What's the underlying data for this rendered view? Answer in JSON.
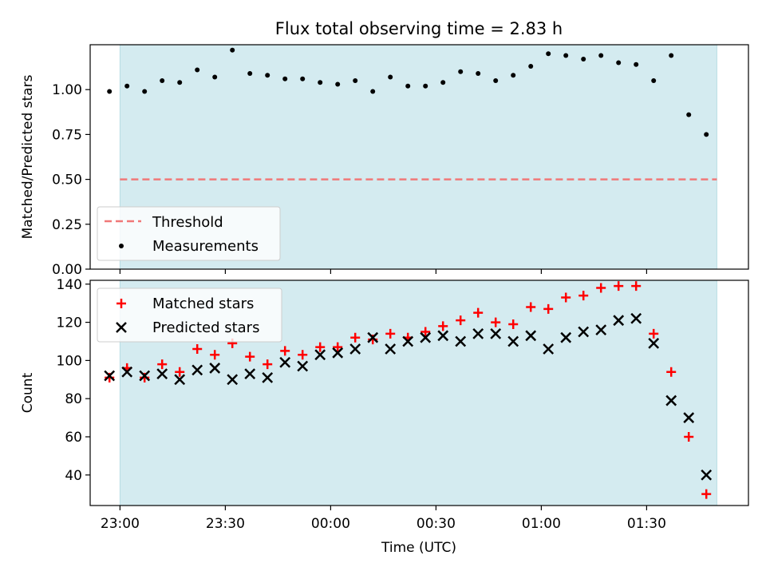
{
  "chart_data": {
    "title": "Flux total observing time = 2.83 h",
    "x_axis": {
      "label": "Time (UTC)",
      "ticks": [
        "23:00",
        "23:30",
        "00:00",
        "00:30",
        "01:00",
        "01:30"
      ],
      "tick_minutes_from_22h": [
        60,
        90,
        120,
        150,
        180,
        210
      ],
      "range_minutes_from_22h": [
        51.5,
        239.0
      ]
    },
    "observing_window_minutes_from_22h": [
      60,
      230
    ],
    "shade_color": "#d4ebf0",
    "panels": [
      {
        "type": "scatter",
        "ylabel": "Matched/Predicted stars",
        "ylim": [
          0,
          1.25
        ],
        "yticks": [
          0.0,
          0.25,
          0.5,
          0.75,
          1.0
        ],
        "ytick_labels": [
          "0.00",
          "0.25",
          "0.50",
          "0.75",
          "1.00"
        ],
        "legend_position": "lower-left",
        "series": [
          {
            "name": "Threshold",
            "kind": "hline",
            "y": 0.5,
            "color": "#f07878",
            "style": "dashed"
          },
          {
            "name": "Measurements",
            "kind": "dot",
            "color": "#000000",
            "x": [
              "22:57",
              "23:02",
              "23:07",
              "23:12",
              "23:17",
              "23:22",
              "23:27",
              "23:32",
              "23:37",
              "23:42",
              "23:47",
              "23:52",
              "23:57",
              "00:02",
              "00:07",
              "00:12",
              "00:17",
              "00:22",
              "00:27",
              "00:32",
              "00:37",
              "00:42",
              "00:47",
              "00:52",
              "00:57",
              "01:02",
              "01:07",
              "01:12",
              "01:17",
              "01:22",
              "01:27",
              "01:32",
              "01:37",
              "01:42",
              "01:47"
            ],
            "y": [
              0.99,
              1.02,
              0.99,
              1.05,
              1.04,
              1.11,
              1.07,
              1.22,
              1.09,
              1.08,
              1.06,
              1.06,
              1.04,
              1.03,
              1.05,
              0.99,
              1.07,
              1.02,
              1.02,
              1.04,
              1.1,
              1.09,
              1.05,
              1.08,
              1.13,
              1.2,
              1.19,
              1.17,
              1.19,
              1.15,
              1.14,
              1.05,
              1.19,
              0.86,
              0.75
            ]
          }
        ]
      },
      {
        "type": "scatter",
        "ylabel": "Count",
        "ylim": [
          24,
          142
        ],
        "yticks": [
          40,
          60,
          80,
          100,
          120,
          140
        ],
        "ytick_labels": [
          "40",
          "60",
          "80",
          "100",
          "120",
          "140"
        ],
        "legend_position": "upper-left",
        "series": [
          {
            "name": "Matched stars",
            "kind": "plus",
            "color": "#ff0000",
            "x": [
              "22:57",
              "23:02",
              "23:07",
              "23:12",
              "23:17",
              "23:22",
              "23:27",
              "23:32",
              "23:37",
              "23:42",
              "23:47",
              "23:52",
              "23:57",
              "00:02",
              "00:07",
              "00:12",
              "00:17",
              "00:22",
              "00:27",
              "00:32",
              "00:37",
              "00:42",
              "00:47",
              "00:52",
              "00:57",
              "01:02",
              "01:07",
              "01:12",
              "01:17",
              "01:22",
              "01:27",
              "01:32",
              "01:37",
              "01:42",
              "01:47"
            ],
            "y": [
              91,
              96,
              91,
              98,
              94,
              106,
              103,
              109,
              102,
              98,
              105,
              103,
              107,
              107,
              112,
              111,
              114,
              112,
              115,
              118,
              121,
              125,
              120,
              119,
              128,
              127,
              133,
              134,
              138,
              139,
              139,
              114,
              94,
              60,
              30
            ]
          },
          {
            "name": "Predicted stars",
            "kind": "cross",
            "color": "#000000",
            "x": [
              "22:57",
              "23:02",
              "23:07",
              "23:12",
              "23:17",
              "23:22",
              "23:27",
              "23:32",
              "23:37",
              "23:42",
              "23:47",
              "23:52",
              "23:57",
              "00:02",
              "00:07",
              "00:12",
              "00:17",
              "00:22",
              "00:27",
              "00:32",
              "00:37",
              "00:42",
              "00:47",
              "00:52",
              "00:57",
              "01:02",
              "01:07",
              "01:12",
              "01:17",
              "01:22",
              "01:27",
              "01:32",
              "01:37",
              "01:42",
              "01:47"
            ],
            "y": [
              92,
              94,
              92,
              93,
              90,
              95,
              96,
              90,
              93,
              91,
              99,
              97,
              103,
              104,
              106,
              112,
              106,
              110,
              112,
              113,
              110,
              114,
              114,
              110,
              113,
              106,
              112,
              115,
              116,
              121,
              122,
              109,
              79,
              70,
              40
            ]
          }
        ]
      }
    ]
  }
}
